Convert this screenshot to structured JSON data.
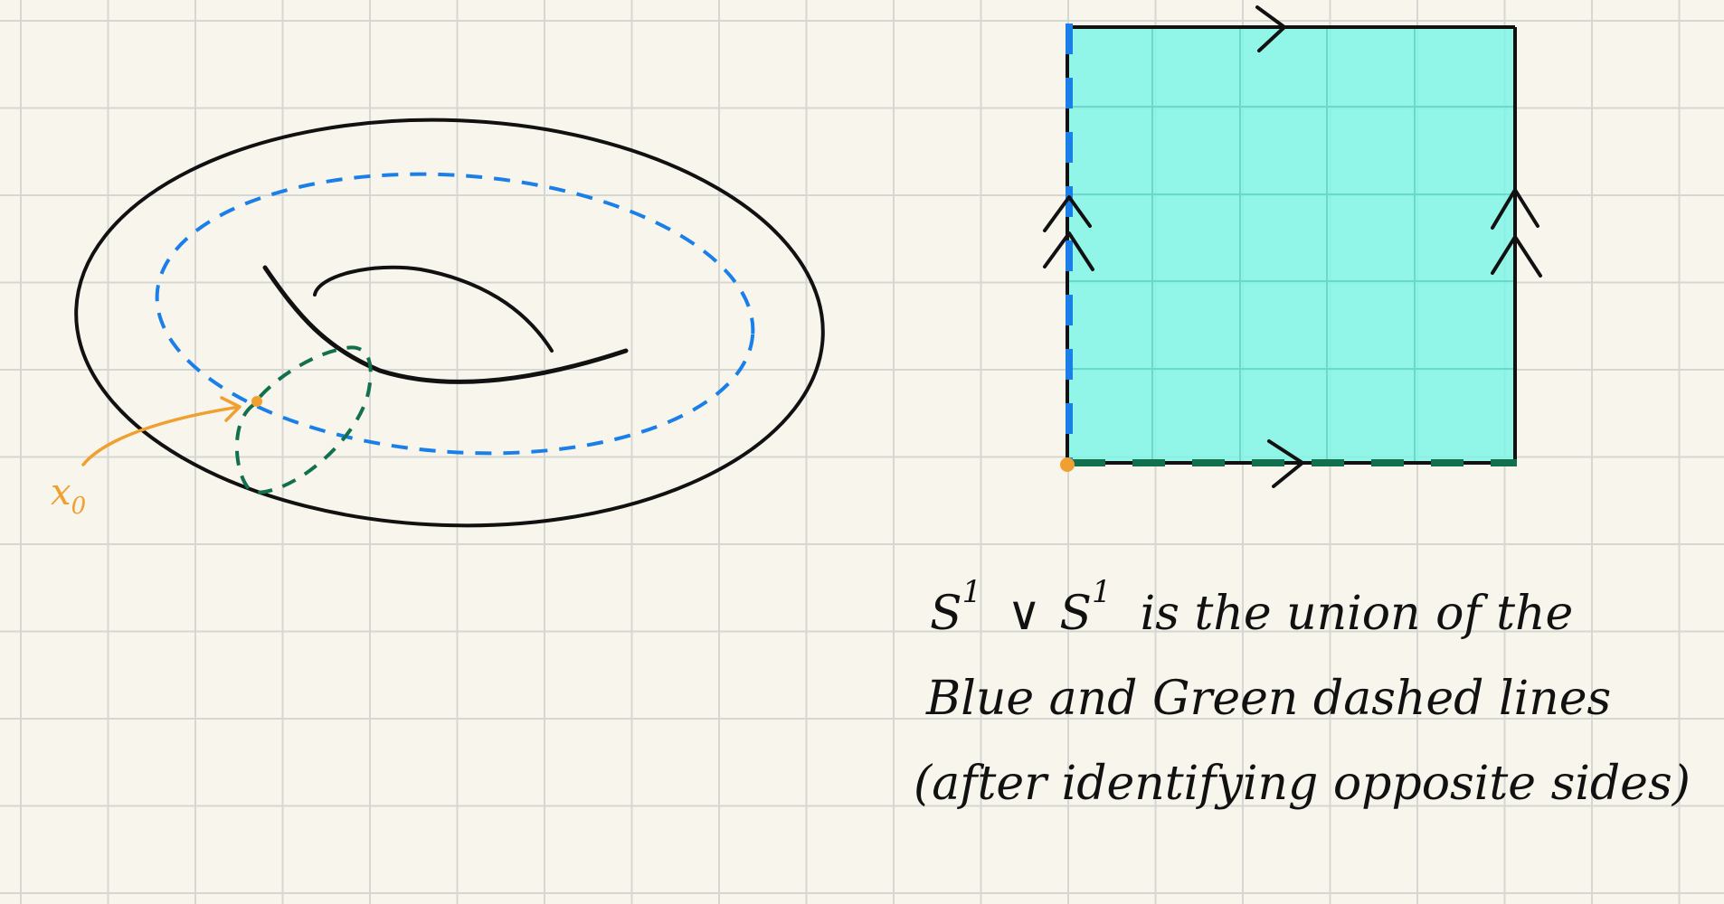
{
  "colors": {
    "background": "#f8f6ec",
    "grid": "#d6d6d2",
    "ink": "#111111",
    "blue_loop": "#1a7fe8",
    "green_loop": "#12704f",
    "basepoint": "#f0a030",
    "square_fill": "#7ff5e6"
  },
  "torus": {
    "basepoint_label": "x₀",
    "basepoint_label_main": "x",
    "basepoint_label_sub": "0"
  },
  "square": {
    "horizontal_arrow_count": 1,
    "vertical_arrow_count": 2
  },
  "caption": {
    "line1_prefix_s": "S",
    "line1_sup1": "1",
    "line1_vee": "∨",
    "line1_s2": "S",
    "line1_sup2": "1",
    "line1_rest": "is the union of the",
    "line2": "Blue and Green dashed lines",
    "line3": "(after identifying opposite sides)"
  }
}
